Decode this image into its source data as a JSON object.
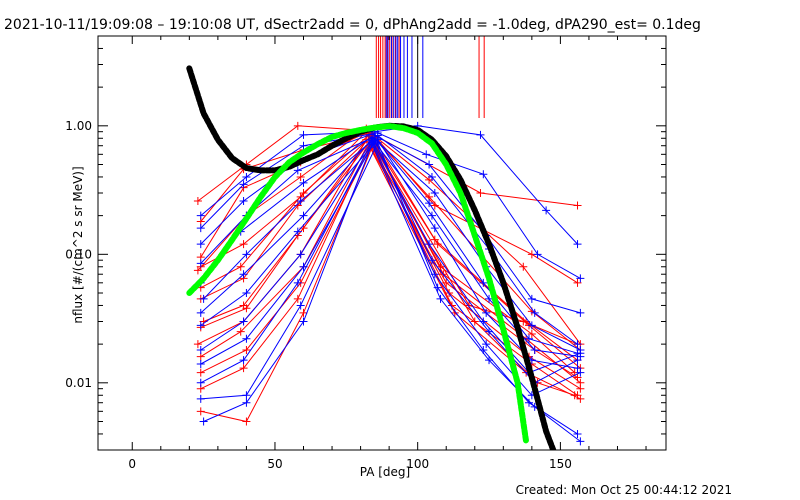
{
  "chart_data": {
    "type": "line",
    "title": "2021-10-11/19:09:08 – 19:10:08 UT, dSectr2add = 0, dPhAng2add = -1.0deg, dPA290_est=  0.1deg",
    "xlabel": "PA [deg]",
    "ylabel": "nflux [#/(cm^2 s sr MeV)]",
    "footer": "Created: Mon Oct 25 00:44:12 2021",
    "x_axis": {
      "min": -12,
      "max": 187,
      "ticks": [
        0,
        50,
        100,
        150
      ],
      "tick_labels": [
        "0",
        "50",
        "100",
        "150"
      ]
    },
    "y_axis": {
      "scale": "log",
      "min": 0.003,
      "max": 5.0,
      "ticks": [
        0.01,
        0.1,
        1.0
      ],
      "tick_labels": [
        "0.01",
        "0.10",
        "1.00"
      ]
    },
    "grid": false,
    "legend": "none",
    "colors": {
      "red": "#ff0000",
      "blue": "#0000ff",
      "black": "#000000",
      "green": "#00ff00"
    },
    "fit_curves": [
      {
        "color": "#000000",
        "points": [
          [
            20,
            2.8
          ],
          [
            25,
            1.25
          ],
          [
            30,
            0.78
          ],
          [
            35,
            0.56
          ],
          [
            40,
            0.47
          ],
          [
            45,
            0.45
          ],
          [
            50,
            0.45
          ],
          [
            55,
            0.48
          ],
          [
            60,
            0.54
          ],
          [
            65,
            0.6
          ],
          [
            70,
            0.7
          ],
          [
            75,
            0.8
          ],
          [
            80,
            0.9
          ],
          [
            85,
            0.97
          ],
          [
            90,
            1.0
          ],
          [
            95,
            0.99
          ],
          [
            100,
            0.93
          ],
          [
            105,
            0.78
          ],
          [
            110,
            0.58
          ],
          [
            115,
            0.38
          ],
          [
            120,
            0.22
          ],
          [
            125,
            0.12
          ],
          [
            130,
            0.06
          ],
          [
            135,
            0.027
          ],
          [
            140,
            0.011
          ],
          [
            145,
            0.0042
          ],
          [
            148,
            0.0028
          ]
        ]
      },
      {
        "color": "#00ff00",
        "points": [
          [
            20,
            0.05
          ],
          [
            25,
            0.065
          ],
          [
            30,
            0.09
          ],
          [
            35,
            0.13
          ],
          [
            40,
            0.19
          ],
          [
            45,
            0.28
          ],
          [
            50,
            0.4
          ],
          [
            55,
            0.52
          ],
          [
            60,
            0.62
          ],
          [
            65,
            0.72
          ],
          [
            70,
            0.82
          ],
          [
            75,
            0.88
          ],
          [
            80,
            0.93
          ],
          [
            85,
            0.97
          ],
          [
            90,
            0.995
          ],
          [
            95,
            0.96
          ],
          [
            100,
            0.88
          ],
          [
            105,
            0.73
          ],
          [
            110,
            0.5
          ],
          [
            115,
            0.3
          ],
          [
            120,
            0.14
          ],
          [
            125,
            0.065
          ],
          [
            130,
            0.026
          ],
          [
            135,
            0.01
          ],
          [
            138,
            0.0035
          ]
        ]
      }
    ],
    "markers": {
      "red": [
        85.5,
        86.3,
        87.0,
        87.8,
        88.6,
        89.4,
        90.2,
        91.0,
        92.2,
        93.5,
        121.5,
        123.3
      ],
      "blue": [
        89.0,
        89.6,
        90.8,
        91.6,
        92.4,
        93.0,
        94.0,
        95.2,
        96.4,
        98.0,
        101.8
      ],
      "black": [
        100.0
      ]
    },
    "series": [
      {
        "color": "#ff0000",
        "points": [
          [
            23,
            0.26
          ],
          [
            40,
            0.5
          ],
          [
            58,
            1.0
          ],
          [
            82,
            0.92
          ],
          [
            122,
            0.3
          ],
          [
            156,
            0.24
          ]
        ]
      },
      {
        "color": "#ff0000",
        "points": [
          [
            24,
            0.18
          ],
          [
            39,
            0.46
          ],
          [
            60,
            0.65
          ],
          [
            84,
            0.88
          ],
          [
            106,
            0.24
          ],
          [
            140,
            0.1
          ],
          [
            156,
            0.06
          ]
        ]
      },
      {
        "color": "#ff0000",
        "points": [
          [
            24,
            0.095
          ],
          [
            39,
            0.33
          ],
          [
            59,
            0.52
          ],
          [
            83,
            0.9
          ],
          [
            104,
            0.38
          ],
          [
            137,
            0.08
          ],
          [
            157,
            0.02
          ]
        ]
      },
      {
        "color": "#ff0000",
        "points": [
          [
            23,
            0.075
          ],
          [
            40,
            0.2
          ],
          [
            59,
            0.4
          ],
          [
            82,
            0.95
          ],
          [
            104,
            0.28
          ],
          [
            140,
            0.036
          ],
          [
            157,
            0.018
          ]
        ]
      },
      {
        "color": "#ff0000",
        "points": [
          [
            24,
            0.055
          ],
          [
            38,
            0.08
          ],
          [
            60,
            0.3
          ],
          [
            83,
            0.85
          ],
          [
            106,
            0.13
          ],
          [
            138,
            0.03
          ],
          [
            156,
            0.015
          ]
        ]
      },
      {
        "color": "#ff0000",
        "points": [
          [
            24,
            0.045
          ],
          [
            39,
            0.065
          ],
          [
            58,
            0.24
          ],
          [
            84,
            0.84
          ],
          [
            107,
            0.12
          ],
          [
            139,
            0.028
          ],
          [
            157,
            0.013
          ]
        ]
      },
      {
        "color": "#ff0000",
        "points": [
          [
            25,
            0.03
          ],
          [
            39,
            0.04
          ],
          [
            60,
            0.16
          ],
          [
            83,
            0.82
          ],
          [
            108,
            0.08
          ],
          [
            140,
            0.024
          ],
          [
            155,
            0.012
          ]
        ]
      },
      {
        "color": "#ff0000",
        "points": [
          [
            24,
            0.027
          ],
          [
            40,
            0.038
          ],
          [
            58,
            0.14
          ],
          [
            84,
            0.8
          ],
          [
            109,
            0.07
          ],
          [
            138,
            0.022
          ],
          [
            157,
            0.01
          ]
        ]
      },
      {
        "color": "#ff0000",
        "points": [
          [
            23,
            0.02
          ],
          [
            39,
            0.03
          ],
          [
            59,
            0.1
          ],
          [
            82,
            0.78
          ],
          [
            110,
            0.06
          ],
          [
            141,
            0.018
          ],
          [
            156,
            0.011
          ]
        ]
      },
      {
        "color": "#ff0000",
        "points": [
          [
            24,
            0.016
          ],
          [
            38,
            0.025
          ],
          [
            60,
            0.08
          ],
          [
            83,
            0.75
          ],
          [
            111,
            0.05
          ],
          [
            139,
            0.016
          ],
          [
            157,
            0.009
          ]
        ]
      },
      {
        "color": "#ff0000",
        "points": [
          [
            24,
            0.012
          ],
          [
            40,
            0.018
          ],
          [
            59,
            0.06
          ],
          [
            84,
            0.72
          ],
          [
            112,
            0.04
          ],
          [
            140,
            0.014
          ],
          [
            156,
            0.008
          ]
        ]
      },
      {
        "color": "#ff0000",
        "points": [
          [
            24,
            0.009
          ],
          [
            39,
            0.013
          ],
          [
            58,
            0.045
          ],
          [
            83,
            0.7
          ],
          [
            113,
            0.035
          ],
          [
            138,
            0.012
          ],
          [
            157,
            0.0075
          ]
        ]
      },
      {
        "color": "#ff0000",
        "points": [
          [
            24,
            0.006
          ],
          [
            40,
            0.005
          ],
          [
            60,
            0.035
          ],
          [
            84,
            0.68
          ],
          [
            120,
            0.03
          ],
          [
            142,
            0.01
          ],
          [
            155,
            0.008
          ]
        ]
      },
      {
        "color": "#ff0000",
        "points": [
          [
            24,
            0.08
          ],
          [
            39,
            0.12
          ],
          [
            59,
            0.28
          ],
          [
            82,
            0.9
          ],
          [
            118,
            0.04
          ],
          [
            137,
            0.03
          ],
          [
            156,
            0.02
          ]
        ]
      },
      {
        "color": "#0000ff",
        "points": [
          [
            24,
            0.2
          ],
          [
            40,
            0.4
          ],
          [
            60,
            0.85
          ],
          [
            85,
            0.9
          ],
          [
            100,
            1.0
          ],
          [
            122,
            0.85
          ],
          [
            145,
            0.22
          ],
          [
            156,
            0.12
          ]
        ]
      },
      {
        "color": "#0000ff",
        "points": [
          [
            24,
            0.16
          ],
          [
            39,
            0.35
          ],
          [
            60,
            0.7
          ],
          [
            86,
            0.88
          ],
          [
            103,
            0.6
          ],
          [
            123,
            0.42
          ],
          [
            142,
            0.1
          ],
          [
            157,
            0.065
          ]
        ]
      },
      {
        "color": "#0000ff",
        "points": [
          [
            24,
            0.12
          ],
          [
            39,
            0.26
          ],
          [
            59,
            0.55
          ],
          [
            84,
            0.86
          ],
          [
            104,
            0.5
          ],
          [
            124,
            0.14
          ],
          [
            140,
            0.045
          ],
          [
            157,
            0.035
          ]
        ]
      },
      {
        "color": "#0000ff",
        "points": [
          [
            24,
            0.085
          ],
          [
            40,
            0.2
          ],
          [
            58,
            0.45
          ],
          [
            86,
            0.84
          ],
          [
            105,
            0.4
          ],
          [
            125,
            0.11
          ],
          [
            141,
            0.035
          ],
          [
            156,
            0.02
          ]
        ]
      },
      {
        "color": "#0000ff",
        "points": [
          [
            24,
            0.06
          ],
          [
            38,
            0.15
          ],
          [
            60,
            0.36
          ],
          [
            84,
            0.82
          ],
          [
            106,
            0.3
          ],
          [
            124,
            0.08
          ],
          [
            140,
            0.028
          ],
          [
            157,
            0.018
          ]
        ]
      },
      {
        "color": "#0000ff",
        "points": [
          [
            25,
            0.045
          ],
          [
            40,
            0.1
          ],
          [
            59,
            0.26
          ],
          [
            85,
            0.8
          ],
          [
            104,
            0.25
          ],
          [
            123,
            0.06
          ],
          [
            139,
            0.022
          ],
          [
            156,
            0.017
          ]
        ]
      },
      {
        "color": "#0000ff",
        "points": [
          [
            24,
            0.035
          ],
          [
            39,
            0.07
          ],
          [
            60,
            0.2
          ],
          [
            84,
            0.79
          ],
          [
            105,
            0.2
          ],
          [
            125,
            0.045
          ],
          [
            141,
            0.018
          ],
          [
            157,
            0.016
          ]
        ]
      },
      {
        "color": "#0000ff",
        "points": [
          [
            24,
            0.028
          ],
          [
            40,
            0.05
          ],
          [
            58,
            0.15
          ],
          [
            86,
            0.78
          ],
          [
            106,
            0.16
          ],
          [
            124,
            0.035
          ],
          [
            140,
            0.015
          ],
          [
            156,
            0.013
          ]
        ]
      },
      {
        "color": "#0000ff",
        "points": [
          [
            24,
            0.018
          ],
          [
            39,
            0.03
          ],
          [
            59,
            0.1
          ],
          [
            84,
            0.77
          ],
          [
            104,
            0.12
          ],
          [
            123,
            0.03
          ],
          [
            139,
            0.012
          ],
          [
            157,
            0.017
          ]
        ]
      },
      {
        "color": "#0000ff",
        "points": [
          [
            24,
            0.014
          ],
          [
            40,
            0.022
          ],
          [
            60,
            0.08
          ],
          [
            85,
            0.76
          ],
          [
            105,
            0.09
          ],
          [
            125,
            0.025
          ],
          [
            141,
            0.01
          ],
          [
            156,
            0.015
          ]
        ]
      },
      {
        "color": "#0000ff",
        "points": [
          [
            24,
            0.01
          ],
          [
            39,
            0.015
          ],
          [
            58,
            0.06
          ],
          [
            84,
            0.75
          ],
          [
            106,
            0.07
          ],
          [
            124,
            0.02
          ],
          [
            140,
            0.008
          ],
          [
            157,
            0.012
          ]
        ]
      },
      {
        "color": "#0000ff",
        "points": [
          [
            24,
            0.0075
          ],
          [
            40,
            0.008
          ],
          [
            59,
            0.04
          ],
          [
            86,
            0.74
          ],
          [
            107,
            0.055
          ],
          [
            123,
            0.018
          ],
          [
            139,
            0.007
          ],
          [
            156,
            0.004
          ]
        ]
      },
      {
        "color": "#0000ff",
        "points": [
          [
            25,
            0.005
          ],
          [
            40,
            0.007
          ],
          [
            60,
            0.03
          ],
          [
            84,
            0.72
          ],
          [
            108,
            0.045
          ],
          [
            125,
            0.015
          ],
          [
            141,
            0.0065
          ],
          [
            157,
            0.0035
          ]
        ]
      }
    ]
  }
}
